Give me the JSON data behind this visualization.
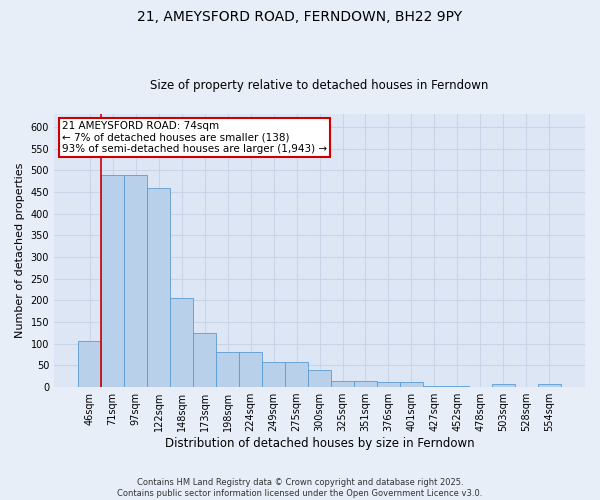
{
  "title": "21, AMEYSFORD ROAD, FERNDOWN, BH22 9PY",
  "subtitle": "Size of property relative to detached houses in Ferndown",
  "xlabel": "Distribution of detached houses by size in Ferndown",
  "ylabel": "Number of detached properties",
  "footer": "Contains HM Land Registry data © Crown copyright and database right 2025.\nContains public sector information licensed under the Open Government Licence v3.0.",
  "categories": [
    "46sqm",
    "71sqm",
    "97sqm",
    "122sqm",
    "148sqm",
    "173sqm",
    "198sqm",
    "224sqm",
    "249sqm",
    "275sqm",
    "300sqm",
    "325sqm",
    "351sqm",
    "376sqm",
    "401sqm",
    "427sqm",
    "452sqm",
    "478sqm",
    "503sqm",
    "528sqm",
    "554sqm"
  ],
  "values": [
    106,
    490,
    490,
    460,
    206,
    124,
    82,
    82,
    57,
    57,
    40,
    14,
    14,
    11,
    11,
    3,
    3,
    0,
    7,
    0,
    7
  ],
  "bar_color": "#b8d0ea",
  "bar_edge_color": "#5b9bd5",
  "fig_bg_color": "#e8eef8",
  "ax_bg_color": "#dde6f5",
  "grid_color": "#c8d4e8",
  "annotation_box_text": "21 AMEYSFORD ROAD: 74sqm\n← 7% of detached houses are smaller (138)\n93% of semi-detached houses are larger (1,943) →",
  "annotation_box_edge_color": "#cc0000",
  "annotation_box_bg": "#ffffff",
  "vline_color": "#cc0000",
  "vline_x_index": 1,
  "ylim_max": 630,
  "yticks": [
    0,
    50,
    100,
    150,
    200,
    250,
    300,
    350,
    400,
    450,
    500,
    550,
    600
  ],
  "title_fontsize": 10,
  "subtitle_fontsize": 8.5,
  "ylabel_fontsize": 8,
  "xlabel_fontsize": 8.5,
  "tick_fontsize": 7,
  "annotation_fontsize": 7.5,
  "footer_fontsize": 6,
  "figsize": [
    6.0,
    5.0
  ],
  "dpi": 100
}
